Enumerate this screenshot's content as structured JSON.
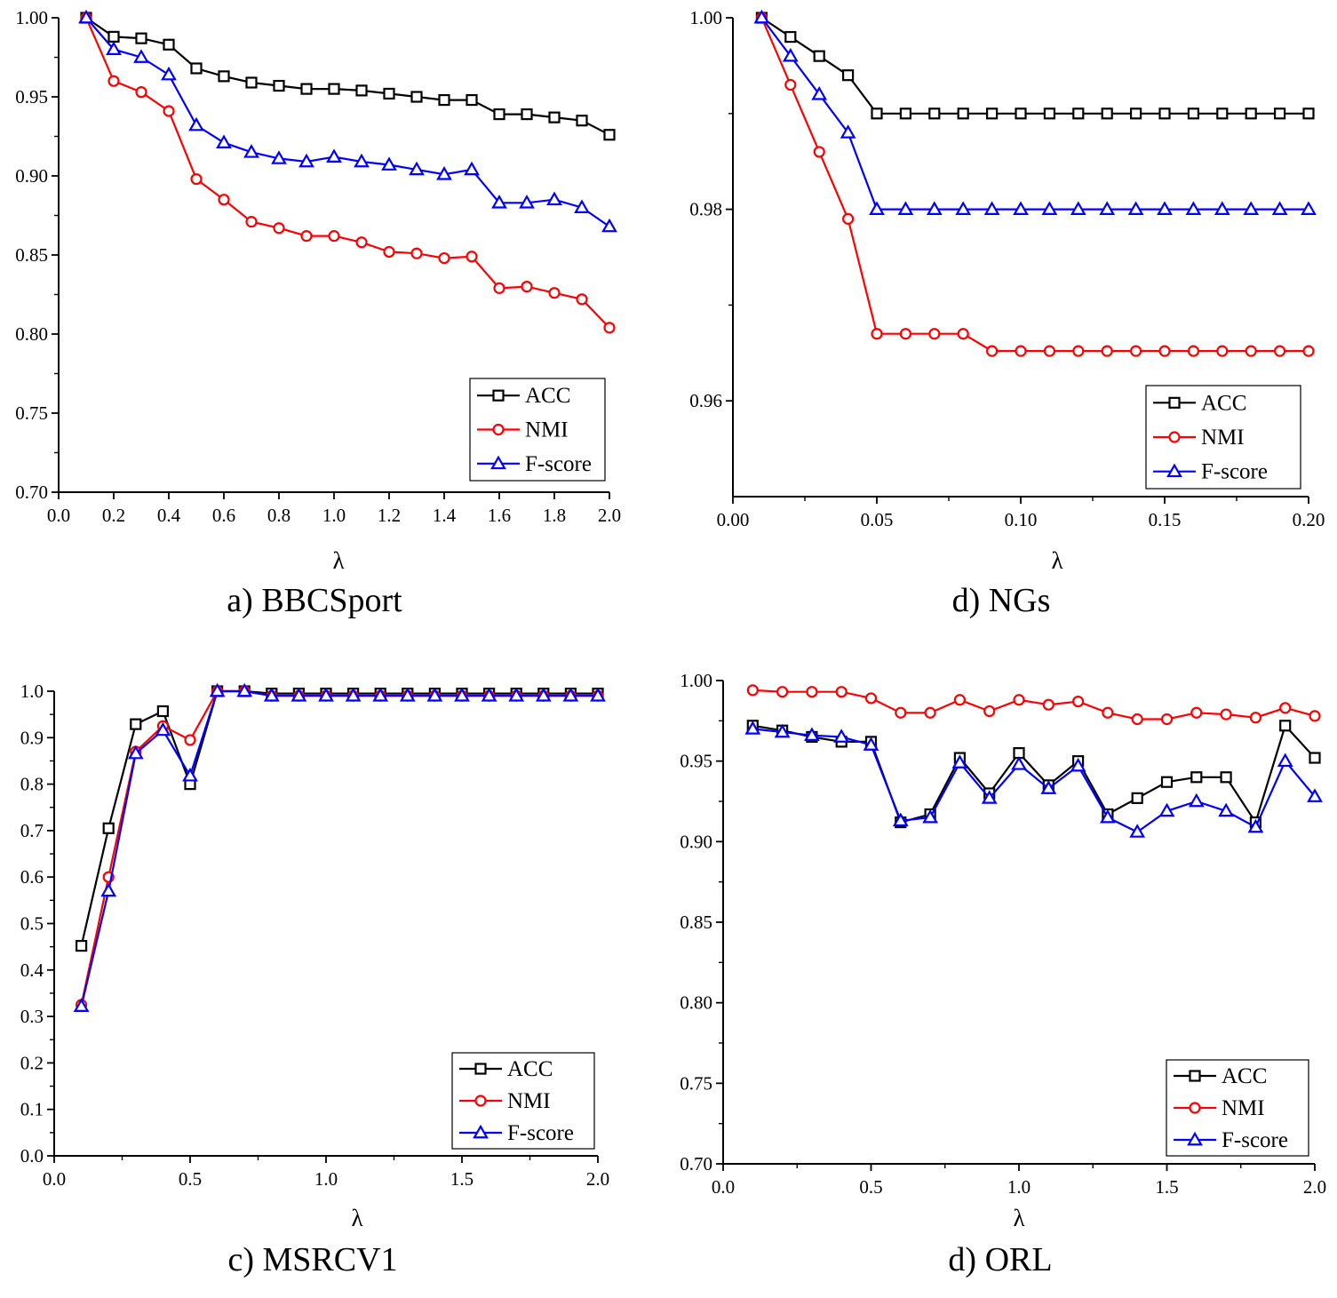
{
  "figure": {
    "panels_order": [
      "bbcsport",
      "ngs",
      "msrcv1",
      "orl"
    ]
  },
  "chart_data": [
    {
      "id": "bbcsport",
      "type": "line",
      "caption": "a) BBCSport",
      "xlabel": "λ",
      "ylabel": "",
      "xlim": [
        0.0,
        2.0
      ],
      "ylim": [
        0.7,
        1.0
      ],
      "xticks": [
        0.0,
        0.2,
        0.4,
        0.6,
        0.8,
        1.0,
        1.2,
        1.4,
        1.6,
        1.8,
        2.0
      ],
      "xtick_labels": [
        "0.0",
        "0.2",
        "0.4",
        "0.6",
        "0.8",
        "1.0",
        "1.2",
        "1.4",
        "1.6",
        "1.8",
        "2.0"
      ],
      "yticks": [
        0.7,
        0.75,
        0.8,
        0.85,
        0.9,
        0.95,
        1.0
      ],
      "ytick_labels": [
        "0.70",
        "0.75",
        "0.80",
        "0.85",
        "0.90",
        "0.95",
        "1.00"
      ],
      "legend_position": "bottom-right",
      "x": [
        0.1,
        0.2,
        0.3,
        0.4,
        0.5,
        0.6,
        0.7,
        0.8,
        0.9,
        1.0,
        1.1,
        1.2,
        1.3,
        1.4,
        1.5,
        1.6,
        1.7,
        1.8,
        1.9,
        2.0
      ],
      "series": [
        {
          "name": "ACC",
          "color": "#000000",
          "marker": "square",
          "values": [
            1.0,
            0.988,
            0.987,
            0.983,
            0.968,
            0.963,
            0.959,
            0.957,
            0.955,
            0.955,
            0.954,
            0.952,
            0.95,
            0.948,
            0.948,
            0.939,
            0.939,
            0.937,
            0.935,
            0.926
          ]
        },
        {
          "name": "NMI",
          "color": "#ff0000",
          "marker": "circle",
          "values": [
            1.0,
            0.96,
            0.953,
            0.941,
            0.898,
            0.885,
            0.871,
            0.867,
            0.862,
            0.862,
            0.858,
            0.852,
            0.851,
            0.848,
            0.849,
            0.829,
            0.83,
            0.826,
            0.822,
            0.804
          ]
        },
        {
          "name": "F-score",
          "color": "#0000ff",
          "marker": "triangle",
          "values": [
            1.0,
            0.98,
            0.975,
            0.964,
            0.932,
            0.921,
            0.915,
            0.911,
            0.909,
            0.912,
            0.909,
            0.907,
            0.904,
            0.901,
            0.904,
            0.883,
            0.883,
            0.885,
            0.88,
            0.868
          ]
        }
      ]
    },
    {
      "id": "ngs",
      "type": "line",
      "caption": "d) NGs",
      "xlabel": "λ",
      "ylabel": "",
      "xlim": [
        0.0,
        0.2
      ],
      "ylim": [
        0.95,
        1.0
      ],
      "xticks": [
        0.0,
        0.05,
        0.1,
        0.15,
        0.2
      ],
      "xtick_labels": [
        "0.00",
        "0.05",
        "0.10",
        "0.15",
        "0.20"
      ],
      "yticks": [
        0.96,
        0.98,
        1.0
      ],
      "ytick_labels": [
        "0.96",
        "0.98",
        "1.00"
      ],
      "legend_position": "bottom-right",
      "x": [
        0.01,
        0.02,
        0.03,
        0.04,
        0.05,
        0.06,
        0.07,
        0.08,
        0.09,
        0.1,
        0.11,
        0.12,
        0.13,
        0.14,
        0.15,
        0.16,
        0.17,
        0.18,
        0.19,
        0.2
      ],
      "series": [
        {
          "name": "ACC",
          "color": "#000000",
          "marker": "square",
          "values": [
            1.0,
            0.998,
            0.996,
            0.994,
            0.99,
            0.99,
            0.99,
            0.99,
            0.99,
            0.99,
            0.99,
            0.99,
            0.99,
            0.99,
            0.99,
            0.99,
            0.99,
            0.99,
            0.99,
            0.99
          ]
        },
        {
          "name": "NMI",
          "color": "#ff0000",
          "marker": "circle",
          "values": [
            1.0,
            0.993,
            0.986,
            0.979,
            0.967,
            0.967,
            0.967,
            0.967,
            0.9652,
            0.9652,
            0.9652,
            0.9652,
            0.9652,
            0.9652,
            0.9652,
            0.9652,
            0.9652,
            0.9652,
            0.9652,
            0.9652
          ]
        },
        {
          "name": "F-score",
          "color": "#0000ff",
          "marker": "triangle",
          "values": [
            1.0,
            0.996,
            0.992,
            0.988,
            0.98,
            0.98,
            0.98,
            0.98,
            0.98,
            0.98,
            0.98,
            0.98,
            0.98,
            0.98,
            0.98,
            0.98,
            0.98,
            0.98,
            0.98,
            0.98
          ]
        }
      ]
    },
    {
      "id": "msrcv1",
      "type": "line",
      "caption": "c) MSRCV1",
      "xlabel": "λ",
      "ylabel": "",
      "xlim": [
        0.0,
        2.0
      ],
      "ylim": [
        0.0,
        1.0
      ],
      "xticks": [
        0.0,
        0.5,
        1.0,
        1.5,
        2.0
      ],
      "xtick_labels": [
        "0.0",
        "0.5",
        "1.0",
        "1.5",
        "2.0"
      ],
      "yticks": [
        0.0,
        0.1,
        0.2,
        0.3,
        0.4,
        0.5,
        0.6,
        0.7,
        0.8,
        0.9,
        1.0
      ],
      "ytick_labels": [
        "0.0",
        "0.1",
        "0.2",
        "0.3",
        "0.4",
        "0.5",
        "0.6",
        "0.7",
        "0.8",
        "0.9",
        "1.0"
      ],
      "legend_position": "bottom-right",
      "x": [
        0.1,
        0.2,
        0.3,
        0.4,
        0.5,
        0.6,
        0.7,
        0.8,
        0.9,
        1.0,
        1.1,
        1.2,
        1.3,
        1.4,
        1.5,
        1.6,
        1.7,
        1.8,
        1.9,
        2.0
      ],
      "series": [
        {
          "name": "ACC",
          "color": "#000000",
          "marker": "square",
          "values": [
            0.452,
            0.705,
            0.929,
            0.957,
            0.8,
            1.0,
            1.0,
            0.995,
            0.995,
            0.995,
            0.995,
            0.995,
            0.995,
            0.995,
            0.995,
            0.995,
            0.995,
            0.995,
            0.995,
            0.995
          ]
        },
        {
          "name": "NMI",
          "color": "#ff0000",
          "marker": "circle",
          "values": [
            0.325,
            0.6,
            0.87,
            0.925,
            0.895,
            1.0,
            1.0,
            0.99,
            0.99,
            0.99,
            0.99,
            0.99,
            0.99,
            0.99,
            0.99,
            0.99,
            0.99,
            0.99,
            0.99,
            0.99
          ]
        },
        {
          "name": "F-score",
          "color": "#0000ff",
          "marker": "triangle",
          "values": [
            0.322,
            0.57,
            0.866,
            0.916,
            0.818,
            1.0,
            1.0,
            0.99,
            0.99,
            0.99,
            0.99,
            0.99,
            0.99,
            0.99,
            0.99,
            0.99,
            0.99,
            0.99,
            0.99,
            0.99
          ]
        }
      ]
    },
    {
      "id": "orl",
      "type": "line",
      "caption": "d) ORL",
      "xlabel": "λ",
      "ylabel": "",
      "xlim": [
        0.0,
        2.0
      ],
      "ylim": [
        0.7,
        1.0
      ],
      "xticks": [
        0.0,
        0.5,
        1.0,
        1.5,
        2.0
      ],
      "xtick_labels": [
        "0.0",
        "0.5",
        "1.0",
        "1.5",
        "2.0"
      ],
      "yticks": [
        0.7,
        0.75,
        0.8,
        0.85,
        0.9,
        0.95,
        1.0
      ],
      "ytick_labels": [
        "0.70",
        "0.75",
        "0.80",
        "0.85",
        "0.90",
        "0.95",
        "1.00"
      ],
      "legend_position": "bottom-right",
      "x": [
        0.1,
        0.2,
        0.3,
        0.4,
        0.5,
        0.6,
        0.7,
        0.8,
        0.9,
        1.0,
        1.1,
        1.2,
        1.3,
        1.4,
        1.5,
        1.6,
        1.7,
        1.8,
        1.9,
        2.0
      ],
      "series": [
        {
          "name": "ACC",
          "color": "#000000",
          "marker": "square",
          "values": [
            0.972,
            0.969,
            0.965,
            0.962,
            0.962,
            0.912,
            0.917,
            0.952,
            0.93,
            0.955,
            0.935,
            0.95,
            0.917,
            0.927,
            0.937,
            0.94,
            0.94,
            0.912,
            0.972,
            0.952
          ]
        },
        {
          "name": "NMI",
          "color": "#ff0000",
          "marker": "circle",
          "values": [
            0.994,
            0.993,
            0.993,
            0.993,
            0.989,
            0.98,
            0.98,
            0.988,
            0.981,
            0.988,
            0.985,
            0.987,
            0.98,
            0.976,
            0.976,
            0.98,
            0.979,
            0.977,
            0.983,
            0.978
          ]
        },
        {
          "name": "F-score",
          "color": "#0000ff",
          "marker": "triangle",
          "values": [
            0.97,
            0.968,
            0.966,
            0.965,
            0.96,
            0.913,
            0.915,
            0.949,
            0.927,
            0.948,
            0.933,
            0.947,
            0.915,
            0.906,
            0.919,
            0.925,
            0.919,
            0.909,
            0.95,
            0.928
          ]
        }
      ]
    }
  ]
}
